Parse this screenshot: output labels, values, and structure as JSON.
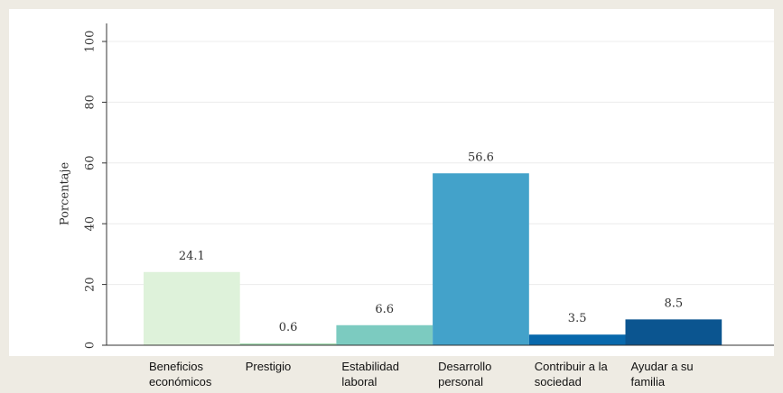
{
  "chart_data": {
    "type": "bar",
    "ylabel": "Porcentaje",
    "categories": [
      "Beneficios económicos",
      "Prestigio",
      "Estabilidad laboral",
      "Desarrollo personal",
      "Contribuir a la sociedad",
      "Ayudar a su familia"
    ],
    "values": [
      24.1,
      0.6,
      6.6,
      56.6,
      3.5,
      8.5
    ],
    "colors": [
      "#def2da",
      "#a8ddb5",
      "#7ccbc0",
      "#43a2ca",
      "#0868ac",
      "#0b5590"
    ],
    "ylim": [
      0,
      100
    ],
    "yticks": [
      0,
      20,
      40,
      60,
      80,
      100
    ],
    "grid": true
  }
}
